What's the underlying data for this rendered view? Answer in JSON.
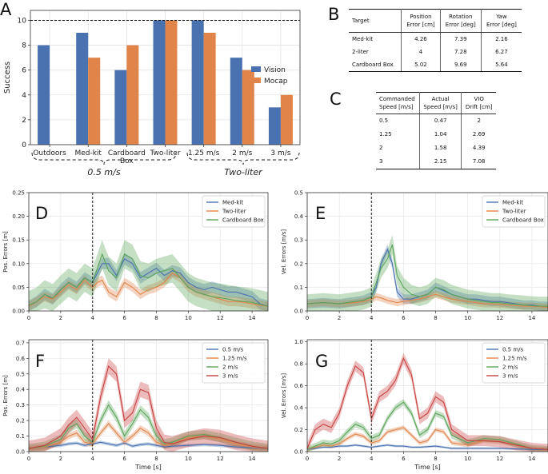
{
  "panel_letters": {
    "A": "A",
    "B": "B",
    "C": "C",
    "D": "D",
    "E": "E",
    "F": "F",
    "G": "G"
  },
  "chart_data": [
    {
      "panel": "A",
      "type": "bar",
      "ylabel": "Success",
      "categories": [
        "Outdoors",
        "Med-kit",
        "Cardboard Box",
        "Two-liter",
        "1.25 m/s",
        "2 m/s",
        "3 m/s"
      ],
      "series": [
        {
          "name": "Vision",
          "color": "#4a72b0",
          "values": [
            8,
            9,
            6,
            10,
            10,
            7,
            3
          ]
        },
        {
          "name": "Mocap",
          "color": "#e0844a",
          "values": [
            null,
            7,
            8,
            10,
            9,
            6,
            4
          ]
        }
      ],
      "ylim": [
        0,
        10.8
      ],
      "yticks": [
        0,
        2,
        4,
        6,
        8,
        10
      ],
      "reference_line": 10,
      "group_labels": [
        "0.5 m/s",
        "Two-liter"
      ],
      "legend_position": "right"
    },
    {
      "panel": "D",
      "type": "line",
      "ylabel": "Pos. Errors [m]",
      "xlim": [
        0,
        15
      ],
      "ylim": [
        0,
        0.25
      ],
      "xticks": [
        0,
        2,
        4,
        6,
        8,
        10,
        12,
        14
      ],
      "yticks": [
        "0.00",
        "0.05",
        "0.10",
        "0.15",
        "0.20",
        "0.25"
      ],
      "vline": 4,
      "legend_position": "top-right",
      "series": [
        {
          "name": "Med-kit",
          "color": "#4a72b0",
          "x": [
            0,
            0.5,
            1,
            1.5,
            2,
            2.5,
            3,
            3.5,
            4,
            4.3,
            4.6,
            5,
            5.5,
            6,
            6.5,
            7,
            7.5,
            8,
            8.5,
            9,
            9.5,
            10,
            10.5,
            11,
            11.5,
            12,
            12.5,
            13,
            13.5,
            14,
            14.5,
            15
          ],
          "y": [
            0.01,
            0.02,
            0.035,
            0.025,
            0.045,
            0.06,
            0.05,
            0.07,
            0.06,
            0.08,
            0.1,
            0.1,
            0.075,
            0.11,
            0.1,
            0.07,
            0.08,
            0.09,
            0.075,
            0.085,
            0.08,
            0.06,
            0.05,
            0.045,
            0.05,
            0.045,
            0.04,
            0.04,
            0.035,
            0.03,
            0.015,
            0.01
          ],
          "band": 0.012
        },
        {
          "name": "Two-liter",
          "color": "#e0844a",
          "x": [
            0,
            0.5,
            1,
            1.5,
            2,
            2.5,
            3,
            3.5,
            4,
            4.3,
            4.6,
            5,
            5.5,
            6,
            6.5,
            7,
            7.5,
            8,
            8.5,
            9,
            9.5,
            10,
            10.5,
            11,
            11.5,
            12,
            12.5,
            13,
            13.5,
            14,
            14.5,
            15
          ],
          "y": [
            0.01,
            0.02,
            0.03,
            0.025,
            0.04,
            0.055,
            0.045,
            0.065,
            0.05,
            0.06,
            0.065,
            0.04,
            0.03,
            0.06,
            0.05,
            0.035,
            0.045,
            0.05,
            0.06,
            0.08,
            0.07,
            0.05,
            0.04,
            0.035,
            0.03,
            0.025,
            0.02,
            0.02,
            0.018,
            0.015,
            0.012,
            0.01
          ],
          "band": 0.01
        },
        {
          "name": "Cardboard Box",
          "color": "#5aa45a",
          "x": [
            0,
            0.5,
            1,
            1.5,
            2,
            2.5,
            3,
            3.5,
            4,
            4.3,
            4.6,
            5,
            5.5,
            6,
            6.5,
            7,
            7.5,
            8,
            8.5,
            9,
            9.5,
            10,
            10.5,
            11,
            11.5,
            12,
            12.5,
            13,
            13.5,
            14,
            14.5,
            15
          ],
          "y": [
            0.012,
            0.02,
            0.035,
            0.027,
            0.045,
            0.06,
            0.05,
            0.07,
            0.06,
            0.09,
            0.12,
            0.085,
            0.07,
            0.12,
            0.11,
            0.075,
            0.07,
            0.08,
            0.085,
            0.09,
            0.07,
            0.05,
            0.04,
            0.035,
            0.03,
            0.028,
            0.025,
            0.022,
            0.02,
            0.018,
            0.014,
            0.01
          ],
          "band": 0.03
        }
      ]
    },
    {
      "panel": "E",
      "type": "line",
      "ylabel": "Vel. Errors [m/s]",
      "xlim": [
        0,
        15
      ],
      "ylim": [
        0,
        0.5
      ],
      "xticks": [
        0,
        2,
        4,
        6,
        8,
        10,
        12,
        14
      ],
      "yticks": [
        "0.0",
        "0.1",
        "0.2",
        "0.3",
        "0.4",
        "0.5"
      ],
      "vline": 4,
      "legend_position": "top-right",
      "series": [
        {
          "name": "Med-kit",
          "color": "#4a72b0",
          "x": [
            0,
            1,
            2,
            3,
            3.5,
            4,
            4.3,
            4.6,
            5,
            5.3,
            5.6,
            6,
            6.5,
            7,
            7.5,
            8,
            8.5,
            9,
            9.5,
            10,
            10.5,
            11,
            11.5,
            12,
            12.5,
            13,
            13.5,
            14,
            14.5,
            15
          ],
          "y": [
            0.03,
            0.035,
            0.03,
            0.04,
            0.045,
            0.06,
            0.1,
            0.2,
            0.26,
            0.2,
            0.08,
            0.05,
            0.05,
            0.06,
            0.07,
            0.1,
            0.085,
            0.07,
            0.06,
            0.05,
            0.05,
            0.045,
            0.04,
            0.04,
            0.035,
            0.03,
            0.025,
            0.025,
            0.02,
            0.02
          ],
          "band": 0.02
        },
        {
          "name": "Two-liter",
          "color": "#e0844a",
          "x": [
            0,
            1,
            2,
            3,
            3.5,
            4,
            4.3,
            4.6,
            5,
            5.3,
            5.6,
            6,
            6.5,
            7,
            7.5,
            8,
            8.5,
            9,
            9.5,
            10,
            10.5,
            11,
            11.5,
            12,
            12.5,
            13,
            13.5,
            14,
            14.5,
            15
          ],
          "y": [
            0.03,
            0.035,
            0.03,
            0.035,
            0.04,
            0.05,
            0.06,
            0.055,
            0.045,
            0.04,
            0.035,
            0.04,
            0.045,
            0.05,
            0.06,
            0.07,
            0.06,
            0.05,
            0.045,
            0.04,
            0.035,
            0.03,
            0.03,
            0.028,
            0.025,
            0.022,
            0.02,
            0.02,
            0.018,
            0.015
          ],
          "band": 0.015
        },
        {
          "name": "Cardboard Box",
          "color": "#5aa45a",
          "x": [
            0,
            1,
            2,
            3,
            3.5,
            4,
            4.3,
            4.6,
            5,
            5.3,
            5.6,
            6,
            6.5,
            7,
            7.5,
            8,
            8.5,
            9,
            9.5,
            10,
            10.5,
            11,
            11.5,
            12,
            12.5,
            13,
            13.5,
            14,
            14.5,
            15
          ],
          "y": [
            0.03,
            0.035,
            0.03,
            0.04,
            0.045,
            0.06,
            0.12,
            0.18,
            0.22,
            0.28,
            0.15,
            0.1,
            0.07,
            0.06,
            0.07,
            0.1,
            0.09,
            0.07,
            0.06,
            0.05,
            0.045,
            0.04,
            0.035,
            0.035,
            0.03,
            0.028,
            0.025,
            0.022,
            0.02,
            0.02
          ],
          "band": 0.04
        }
      ]
    },
    {
      "panel": "F",
      "type": "line",
      "xlabel": "Time [s]",
      "ylabel": "Pos. Errors [m]",
      "xlim": [
        0,
        15
      ],
      "ylim": [
        0,
        0.72
      ],
      "xticks": [
        0,
        2,
        4,
        6,
        8,
        10,
        12,
        14
      ],
      "yticks": [
        "0.0",
        "0.1",
        "0.2",
        "0.3",
        "0.4",
        "0.5",
        "0.6",
        "0.7"
      ],
      "vline": 4,
      "legend_position": "top-right",
      "series": [
        {
          "name": "0.5 m/s",
          "color": "#4a72b0",
          "x": [
            0,
            1,
            2,
            2.5,
            3,
            3.5,
            4,
            4.5,
            5,
            5.5,
            6,
            6.5,
            7,
            7.5,
            8,
            8.5,
            9,
            10,
            11,
            12,
            13,
            14,
            15
          ],
          "y": [
            0.02,
            0.03,
            0.04,
            0.05,
            0.055,
            0.04,
            0.05,
            0.06,
            0.05,
            0.04,
            0.055,
            0.035,
            0.045,
            0.05,
            0.04,
            0.03,
            0.035,
            0.04,
            0.045,
            0.04,
            0.03,
            0.025,
            0.02
          ],
          "band": 0.01
        },
        {
          "name": "1.25 m/s",
          "color": "#e0844a",
          "x": [
            0,
            1,
            2,
            2.5,
            3,
            3.5,
            4,
            4.5,
            5,
            5.5,
            6,
            6.5,
            7,
            7.5,
            8,
            8.5,
            9,
            10,
            11,
            12,
            13,
            14,
            15
          ],
          "y": [
            0.02,
            0.03,
            0.06,
            0.1,
            0.12,
            0.06,
            0.05,
            0.12,
            0.18,
            0.12,
            0.06,
            0.1,
            0.15,
            0.12,
            0.06,
            0.04,
            0.05,
            0.09,
            0.1,
            0.08,
            0.05,
            0.03,
            0.02
          ],
          "band": 0.02
        },
        {
          "name": "2 m/s",
          "color": "#5aa45a",
          "x": [
            0,
            1,
            2,
            2.5,
            3,
            3.5,
            4,
            4.5,
            5,
            5.5,
            6,
            6.5,
            7,
            7.5,
            8,
            8.5,
            9,
            10,
            11,
            12,
            13,
            14,
            15
          ],
          "y": [
            0.02,
            0.035,
            0.08,
            0.15,
            0.18,
            0.1,
            0.06,
            0.2,
            0.3,
            0.22,
            0.1,
            0.18,
            0.27,
            0.22,
            0.1,
            0.05,
            0.06,
            0.1,
            0.11,
            0.09,
            0.06,
            0.035,
            0.02
          ],
          "band": 0.03
        },
        {
          "name": "3 m/s",
          "color": "#c84040",
          "x": [
            0,
            1,
            2,
            2.5,
            3,
            3.5,
            4,
            4.5,
            5,
            5.5,
            6,
            6.5,
            7,
            7.5,
            8,
            8.5,
            9,
            10,
            11,
            12,
            13,
            14,
            15
          ],
          "y": [
            0.02,
            0.04,
            0.1,
            0.17,
            0.22,
            0.15,
            0.08,
            0.35,
            0.55,
            0.5,
            0.2,
            0.25,
            0.4,
            0.38,
            0.15,
            0.06,
            0.05,
            0.08,
            0.1,
            0.09,
            0.06,
            0.035,
            0.02
          ],
          "band": 0.05
        }
      ]
    },
    {
      "panel": "G",
      "type": "line",
      "xlabel": "Time [s]",
      "ylabel": "Vel. Errors [m/s]",
      "xlim": [
        0,
        15
      ],
      "ylim": [
        0,
        1.02
      ],
      "xticks": [
        0,
        2,
        4,
        6,
        8,
        10,
        12,
        14
      ],
      "yticks": [
        "0.0",
        "0.2",
        "0.4",
        "0.6",
        "0.8",
        "1.0"
      ],
      "vline": 4,
      "legend_position": "top-right",
      "series": [
        {
          "name": "0.5 m/s",
          "color": "#4a72b0",
          "x": [
            0,
            0.5,
            1,
            1.5,
            2,
            2.5,
            3,
            3.5,
            4,
            4.5,
            5,
            5.5,
            6,
            6.5,
            7,
            7.5,
            8,
            8.5,
            9,
            10,
            11,
            12,
            13,
            14,
            15
          ],
          "y": [
            0.02,
            0.03,
            0.04,
            0.04,
            0.05,
            0.05,
            0.06,
            0.05,
            0.04,
            0.05,
            0.06,
            0.05,
            0.05,
            0.04,
            0.04,
            0.045,
            0.05,
            0.04,
            0.03,
            0.03,
            0.03,
            0.03,
            0.025,
            0.02,
            0.02
          ],
          "band": 0.01
        },
        {
          "name": "1.25 m/s",
          "color": "#e0844a",
          "x": [
            0,
            0.5,
            1,
            1.5,
            2,
            2.5,
            3,
            3.5,
            4,
            4.5,
            5,
            5.5,
            6,
            6.5,
            7,
            7.5,
            8,
            8.5,
            9,
            10,
            11,
            12,
            13,
            14,
            15
          ],
          "y": [
            0.02,
            0.04,
            0.06,
            0.05,
            0.07,
            0.12,
            0.16,
            0.14,
            0.08,
            0.1,
            0.18,
            0.2,
            0.22,
            0.15,
            0.08,
            0.1,
            0.2,
            0.18,
            0.08,
            0.06,
            0.1,
            0.09,
            0.06,
            0.03,
            0.02
          ],
          "band": 0.02
        },
        {
          "name": "2 m/s",
          "color": "#5aa45a",
          "x": [
            0,
            0.5,
            1,
            1.5,
            2,
            2.5,
            3,
            3.5,
            4,
            4.5,
            5,
            5.5,
            6,
            6.5,
            7,
            7.5,
            8,
            8.5,
            9,
            10,
            11,
            12,
            13,
            14,
            15
          ],
          "y": [
            0.02,
            0.05,
            0.08,
            0.07,
            0.1,
            0.18,
            0.25,
            0.22,
            0.12,
            0.15,
            0.3,
            0.4,
            0.45,
            0.35,
            0.15,
            0.2,
            0.35,
            0.32,
            0.15,
            0.08,
            0.12,
            0.11,
            0.07,
            0.03,
            0.02
          ],
          "band": 0.03
        },
        {
          "name": "3 m/s",
          "color": "#c84040",
          "x": [
            0,
            0.5,
            1,
            1.5,
            2,
            2.5,
            3,
            3.5,
            4,
            4.5,
            5,
            5.5,
            6,
            6.5,
            7,
            7.5,
            8,
            8.5,
            9,
            10,
            11,
            12,
            13,
            14,
            15
          ],
          "y": [
            0.03,
            0.2,
            0.25,
            0.22,
            0.35,
            0.6,
            0.78,
            0.72,
            0.3,
            0.5,
            0.55,
            0.65,
            0.85,
            0.7,
            0.3,
            0.35,
            0.5,
            0.45,
            0.2,
            0.1,
            0.1,
            0.09,
            0.06,
            0.03,
            0.02
          ],
          "band": 0.05
        }
      ]
    }
  ],
  "tables": {
    "B": {
      "headers": [
        "Target",
        "Position\nError [cm]",
        "Rotation\nError [deg]",
        "Yaw\nError [deg]"
      ],
      "rows": [
        [
          "Med-kit",
          "4.26",
          "7.39",
          "2.16"
        ],
        [
          "2-liter",
          "4",
          "7.28",
          "6.27"
        ],
        [
          "Cardboard Box",
          "5.02",
          "9.69",
          "5.64"
        ]
      ]
    },
    "C": {
      "headers": [
        "Commanded\nSpeed [m/s]",
        "Actual\nSpeed [m/s]",
        "VIO\nDrift [cm]"
      ],
      "rows": [
        [
          "0.5",
          "0.47",
          "2"
        ],
        [
          "1.25",
          "1.04",
          "2.69"
        ],
        [
          "2",
          "1.58",
          "4.39"
        ],
        [
          "3",
          "2.15",
          "7.08"
        ]
      ]
    }
  }
}
